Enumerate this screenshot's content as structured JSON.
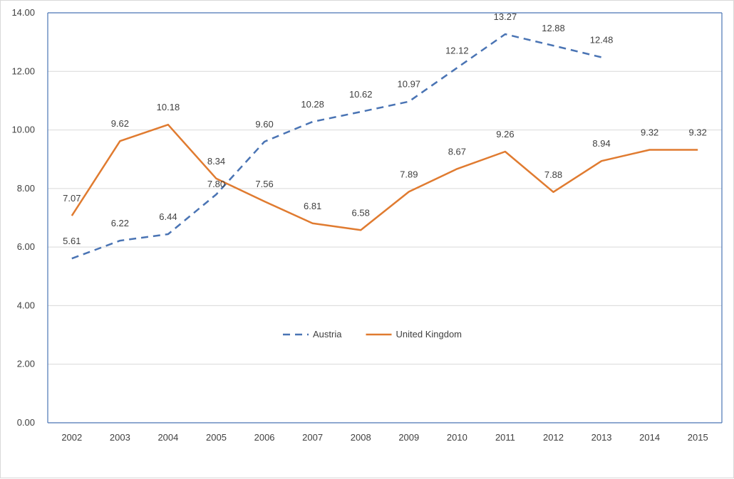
{
  "chart_data": {
    "type": "line",
    "title": "",
    "xlabel": "",
    "ylabel": "",
    "categories": [
      "2002",
      "2003",
      "2004",
      "2005",
      "2006",
      "2007",
      "2008",
      "2009",
      "2010",
      "2011",
      "2012",
      "2013",
      "2014",
      "2015"
    ],
    "ylim": [
      0,
      14
    ],
    "y_ticks": [
      "0.00",
      "2.00",
      "4.00",
      "6.00",
      "8.00",
      "10.00",
      "12.00",
      "14.00"
    ],
    "grid": true,
    "legend_position": "center",
    "series": [
      {
        "name": "Austria",
        "color": "#4a74b4",
        "style": "dashed",
        "values": [
          5.61,
          6.22,
          6.44,
          7.8,
          9.6,
          10.28,
          10.62,
          10.97,
          12.12,
          13.27,
          12.88,
          12.48,
          null,
          null
        ],
        "labels": [
          "5.61",
          "6.22",
          "6.44",
          "7.80",
          "9.60",
          "10.28",
          "10.62",
          "10.97",
          "12.12",
          "13.27",
          "12.88",
          "12.48",
          "",
          ""
        ]
      },
      {
        "name": "United Kingdom",
        "color": "#e07b30",
        "style": "solid",
        "values": [
          7.07,
          9.62,
          10.18,
          8.34,
          7.56,
          6.81,
          6.58,
          7.89,
          8.67,
          9.26,
          7.88,
          8.94,
          9.32,
          9.32
        ],
        "labels": [
          "7.07",
          "9.62",
          "10.18",
          "8.34",
          "7.56",
          "6.81",
          "6.58",
          "7.89",
          "8.67",
          "9.26",
          "7.88",
          "8.94",
          "9.32",
          "9.32"
        ]
      }
    ]
  }
}
